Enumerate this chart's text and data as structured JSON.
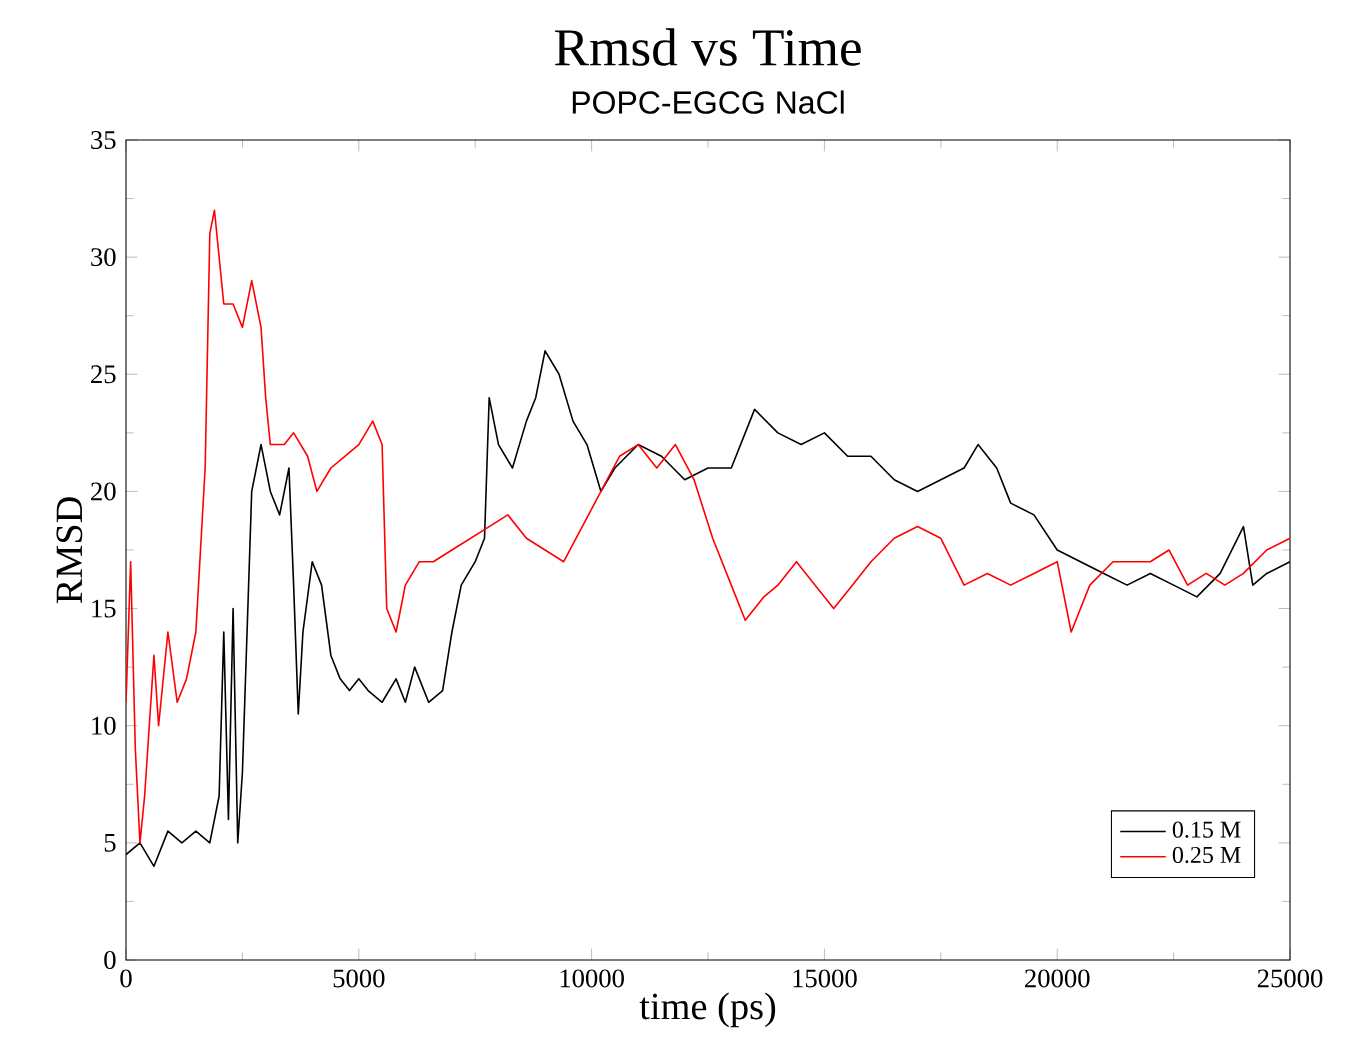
{
  "chart_data": {
    "type": "line",
    "title": "Rmsd vs Time",
    "subtitle": "POPC-EGCG NaCl",
    "xlabel": "time (ps)",
    "ylabel": "RMSD",
    "xlim": [
      0,
      25000
    ],
    "ylim": [
      0,
      35
    ],
    "xticks": [
      0,
      5000,
      10000,
      15000,
      20000,
      25000
    ],
    "yticks": [
      0,
      5,
      10,
      15,
      20,
      25,
      30,
      35
    ],
    "legend": "bottom right",
    "grid": false,
    "marker": "none",
    "line_style": "solid",
    "series": [
      {
        "name": "0.15 M",
        "color": "#000000",
        "x": [
          0,
          300,
          600,
          900,
          1200,
          1500,
          1800,
          2000,
          2100,
          2200,
          2300,
          2400,
          2500,
          2700,
          2900,
          3100,
          3300,
          3500,
          3600,
          3700,
          3800,
          4000,
          4200,
          4400,
          4600,
          4800,
          5000,
          5200,
          5500,
          5800,
          6000,
          6200,
          6500,
          6800,
          7000,
          7200,
          7500,
          7700,
          7800,
          8000,
          8300,
          8600,
          8800,
          9000,
          9300,
          9600,
          9900,
          10200,
          10500,
          11000,
          11500,
          12000,
          12500,
          13000,
          13500,
          14000,
          14500,
          15000,
          15500,
          16000,
          16500,
          17000,
          17500,
          18000,
          18300,
          18700,
          19000,
          19500,
          20000,
          20500,
          21000,
          21500,
          22000,
          22500,
          23000,
          23500,
          24000,
          24200,
          24500,
          25000
        ],
        "values": [
          4.5,
          5,
          4,
          5.5,
          5,
          5.5,
          5,
          7,
          14,
          6,
          15,
          5,
          8,
          20,
          22,
          20,
          19,
          21,
          16,
          10.5,
          14,
          17,
          16,
          13,
          12,
          11.5,
          12,
          11.5,
          11,
          12,
          11,
          12.5,
          11,
          11.5,
          14,
          16,
          17,
          18,
          24,
          22,
          21,
          23,
          24,
          26,
          25,
          23,
          22,
          20,
          21,
          22,
          21.5,
          20.5,
          21,
          21,
          23.5,
          22.5,
          22,
          22.5,
          21.5,
          21.5,
          20.5,
          20,
          20.5,
          21,
          22,
          21,
          19.5,
          19,
          17.5,
          17,
          16.5,
          16,
          16.5,
          16,
          15.5,
          16.5,
          18.5,
          16,
          16.5,
          17
        ]
      },
      {
        "name": "0.25 M",
        "color": "#ff0000",
        "x": [
          0,
          100,
          200,
          300,
          400,
          600,
          700,
          900,
          1100,
          1300,
          1500,
          1700,
          1800,
          1900,
          2100,
          2300,
          2500,
          2700,
          2900,
          3000,
          3100,
          3400,
          3600,
          3900,
          4100,
          4400,
          4700,
          5000,
          5300,
          5500,
          5600,
          5800,
          6000,
          6300,
          6600,
          7000,
          7400,
          7800,
          8200,
          8600,
          9000,
          9400,
          9800,
          10200,
          10600,
          11000,
          11400,
          11800,
          12200,
          12600,
          13000,
          13300,
          13700,
          14000,
          14400,
          14800,
          15200,
          15600,
          16000,
          16500,
          17000,
          17500,
          18000,
          18500,
          19000,
          19500,
          20000,
          20300,
          20700,
          21200,
          21600,
          22000,
          22400,
          22800,
          23200,
          23600,
          24000,
          24500,
          25000
        ],
        "values": [
          11,
          17,
          9,
          5,
          7,
          13,
          10,
          14,
          11,
          12,
          14,
          21,
          31,
          32,
          28,
          28,
          27,
          29,
          27,
          24,
          22,
          22,
          22.5,
          21.5,
          20,
          21,
          21.5,
          22,
          23,
          22,
          15,
          14,
          16,
          17,
          17,
          17.5,
          18,
          18.5,
          19,
          18,
          17.5,
          17,
          18.5,
          20,
          21.5,
          22,
          21,
          22,
          20.5,
          18,
          16,
          14.5,
          15.5,
          16,
          17,
          16,
          15,
          16,
          17,
          18,
          18.5,
          18,
          16,
          16.5,
          16,
          16.5,
          17,
          14,
          16,
          17,
          17,
          17,
          17.5,
          16,
          16.5,
          16,
          16.5,
          17.5,
          18
        ]
      }
    ]
  }
}
